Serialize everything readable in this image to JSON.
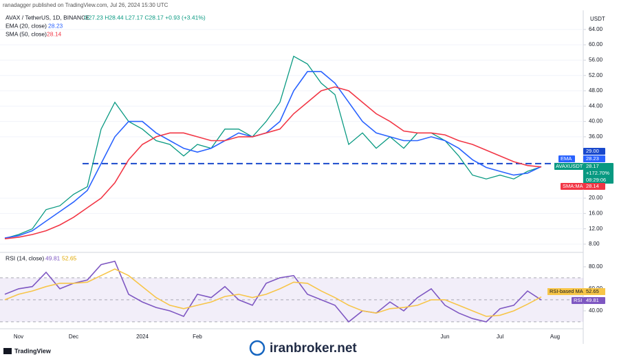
{
  "header": {
    "published": "ranadagger published on TradingView.com, Jul 26, 2024 15:30 UTC",
    "symbol": "AVAX / TetherUS, 1D, BINANCE",
    "ohlc": "O27.23 H28.44 L27.17 C28.17 +0.93 (+3.41%)",
    "logo": "TradingView",
    "watermark": "iranbroker.net"
  },
  "chart_data": [
    {
      "type": "line",
      "currency": "USDT",
      "series": [
        {
          "name": "AVAXUSDT",
          "color": "#089981",
          "values": [
            9.5,
            10.5,
            12,
            17,
            18,
            21,
            23,
            38,
            45,
            40,
            38,
            35,
            34,
            31,
            34,
            33,
            38,
            38,
            36,
            40,
            45,
            57,
            55,
            50,
            47,
            34,
            37,
            33,
            36,
            33,
            37,
            37,
            35,
            31,
            26,
            25,
            26,
            25,
            27,
            28.17,
            null,
            null,
            null
          ]
        },
        {
          "name": "EMA (20, close)",
          "color": "#2962ff",
          "values": [
            9.6,
            10.2,
            11.5,
            14,
            16.5,
            19,
            22,
            29,
            36,
            40,
            40,
            37,
            35,
            33,
            32,
            33,
            35,
            37,
            36,
            37,
            40,
            48,
            53,
            53,
            50,
            45,
            40,
            37,
            36,
            35,
            35,
            36,
            35,
            33,
            30,
            28,
            27,
            26,
            26.5,
            28.23,
            null,
            null,
            null
          ]
        },
        {
          "name": "SMA (50, close)",
          "color": "#f23645",
          "values": [
            9.4,
            9.8,
            10.5,
            11.5,
            13,
            15,
            17.5,
            20,
            24,
            30,
            34,
            36,
            37,
            37,
            36,
            35,
            35,
            36,
            36,
            37,
            38,
            42,
            45,
            48,
            49,
            48,
            45,
            42,
            40,
            37.5,
            37,
            37,
            36.5,
            35,
            34,
            32.5,
            31,
            29.5,
            28.5,
            28.14,
            null,
            null,
            null
          ]
        }
      ],
      "ylim": [
        6.2,
        66.3
      ],
      "yticks": [
        {
          "value": 8,
          "label": "8.00"
        },
        {
          "value": 12,
          "label": "12.00"
        },
        {
          "value": 16,
          "label": "16.00"
        },
        {
          "value": 20,
          "label": "20.00"
        },
        {
          "value": 36,
          "label": "36.00"
        },
        {
          "value": 40,
          "label": "40.00"
        },
        {
          "value": 44,
          "label": "44.00"
        },
        {
          "value": 48,
          "label": "48.00"
        },
        {
          "value": 52,
          "label": "52.00"
        },
        {
          "value": 56,
          "label": "56.00"
        },
        {
          "value": 60,
          "label": "60.00"
        },
        {
          "value": 64,
          "label": "64.00"
        }
      ],
      "grid": true,
      "hline": {
        "value": 29,
        "label": "29.00",
        "color": "#1848cc"
      },
      "tags": {
        "change": "+172.70%",
        "countdown": "08:29:06",
        "ema": "EMA",
        "sma": "SMA:MA"
      }
    },
    {
      "type": "line",
      "title": "RSI (14, close)",
      "categories": [
        null,
        "Nov",
        null,
        null,
        null,
        "Dec",
        null,
        null,
        null,
        null,
        "2024",
        null,
        null,
        null,
        "Feb",
        null,
        null,
        null,
        null,
        null,
        null,
        null,
        null,
        null,
        null,
        null,
        null,
        null,
        null,
        null,
        null,
        null,
        "Jun",
        null,
        null,
        null,
        "Jul",
        null,
        null,
        null,
        "Aug",
        null,
        null
      ],
      "series": [
        {
          "name": "RSI",
          "color": "#7e57c2",
          "values": [
            55,
            60,
            62,
            75,
            60,
            65,
            68,
            82,
            85,
            55,
            48,
            43,
            40,
            35,
            55,
            52,
            62,
            50,
            45,
            65,
            70,
            72,
            55,
            50,
            45,
            30,
            40,
            38,
            48,
            40,
            52,
            60,
            45,
            38,
            33,
            30,
            42,
            45,
            58,
            49.81,
            null,
            null,
            null
          ]
        },
        {
          "name": "RSI-based MA",
          "color": "#f7c548",
          "values": [
            50,
            55,
            58,
            62,
            65,
            65,
            66,
            72,
            78,
            72,
            62,
            52,
            45,
            42,
            45,
            48,
            53,
            55,
            52,
            55,
            60,
            66,
            65,
            58,
            52,
            45,
            40,
            38,
            42,
            43,
            45,
            50,
            50,
            45,
            40,
            35,
            36,
            40,
            46,
            52.65,
            null,
            null,
            null
          ]
        }
      ],
      "ylim": [
        25.6,
        91.2
      ],
      "yticks": [
        {
          "value": 40,
          "label": "40.00"
        },
        {
          "value": 60,
          "label": "60.00"
        },
        {
          "value": 80,
          "label": "80.00"
        }
      ],
      "levels": [
        30,
        50,
        70
      ]
    }
  ]
}
